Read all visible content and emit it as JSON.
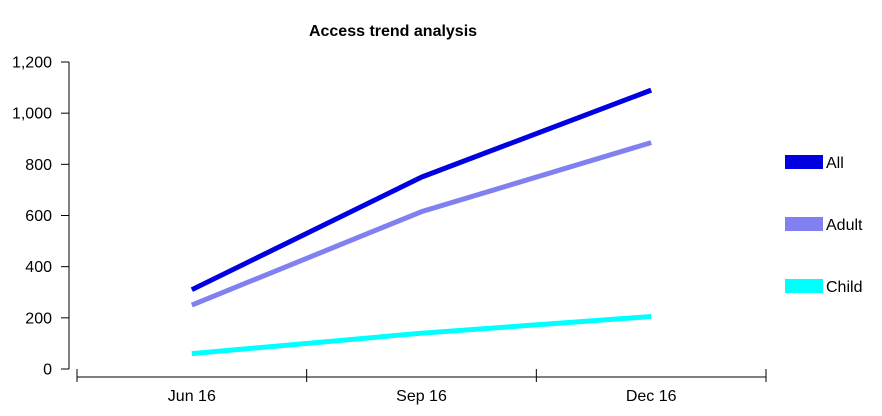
{
  "chart_data": {
    "type": "line",
    "title": "Access trend analysis",
    "xlabel": "",
    "ylabel": "",
    "categories": [
      "Jun 16",
      "Sep 16",
      "Dec 16"
    ],
    "ylim": [
      0,
      1200
    ],
    "yticks": [
      0,
      200,
      400,
      600,
      800,
      1000,
      1200
    ],
    "ytick_labels": [
      "0",
      "200",
      "400",
      "600",
      "800",
      "1,000",
      "1,200"
    ],
    "grid": false,
    "legend_position": "right",
    "series": [
      {
        "name": "All",
        "color": "#0000e0",
        "values": [
          310,
          750,
          1090
        ]
      },
      {
        "name": "Adult",
        "color": "#8080f0",
        "values": [
          250,
          615,
          885
        ]
      },
      {
        "name": "Child",
        "color": "#00ffff",
        "values": [
          60,
          140,
          205
        ]
      }
    ]
  }
}
